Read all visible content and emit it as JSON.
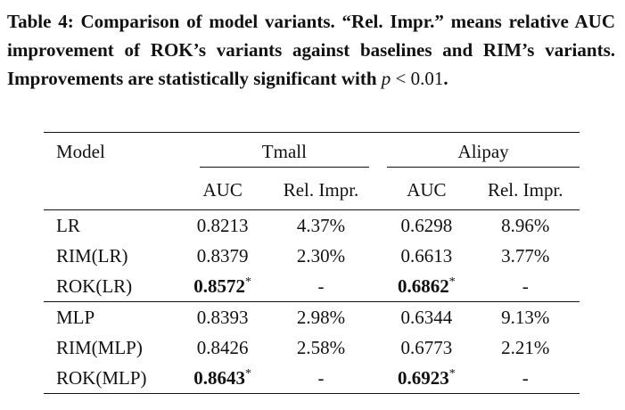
{
  "caption": {
    "prefix": "Table 4: Comparison of model variants. “Rel. Impr.” means relative AUC improvement of ROK’s variants against baselines and RIM’s variants. Improvements are statistically significant with ",
    "p_symbol": "p",
    "relation": " < ",
    "threshold": "0.01",
    "suffix": "."
  },
  "table": {
    "col_model": "Model",
    "group_tmall": "Tmall",
    "group_alipay": "Alipay",
    "sub_auc": "AUC",
    "sub_rel": "Rel. Impr.",
    "blocks": [
      {
        "rows": [
          {
            "model": "LR",
            "tmall_auc": "0.8213",
            "tmall_rel": "4.37%",
            "alipay_auc": "0.6298",
            "alipay_rel": "8.96%"
          },
          {
            "model": "RIM(LR)",
            "tmall_auc": "0.8379",
            "tmall_rel": "2.30%",
            "alipay_auc": "0.6613",
            "alipay_rel": "3.77%"
          },
          {
            "model": "ROK(LR)",
            "tmall_auc": "0.8572",
            "tmall_rel": "-",
            "alipay_auc": "0.6862",
            "alipay_rel": "-"
          }
        ]
      },
      {
        "rows": [
          {
            "model": "MLP",
            "tmall_auc": "0.8393",
            "tmall_rel": "2.98%",
            "alipay_auc": "0.6344",
            "alipay_rel": "9.13%"
          },
          {
            "model": "RIM(MLP)",
            "tmall_auc": "0.8426",
            "tmall_rel": "2.58%",
            "alipay_auc": "0.6773",
            "alipay_rel": "2.21%"
          },
          {
            "model": "ROK(MLP)",
            "tmall_auc": "0.8643",
            "tmall_rel": "-",
            "alipay_auc": "0.6923",
            "alipay_rel": "-"
          }
        ]
      }
    ],
    "significance_mark": "*"
  }
}
